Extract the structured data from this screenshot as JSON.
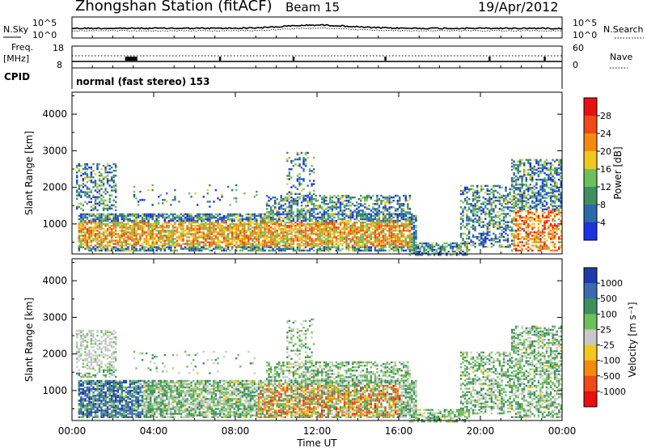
{
  "header": {
    "title": "Zhongshan Station (fitACF)",
    "beam": "Beam 15",
    "date": "19/Apr/2012"
  },
  "top_panels": {
    "nsky_label": "N.Sky",
    "nsky_ticks": [
      "10^5",
      "10^0"
    ],
    "nsearch_label": "N.Search",
    "nsearch_ticks": [
      "10^5",
      "10^0"
    ],
    "freq_label": "Freq.",
    "freq_unit": "[MHz]",
    "freq_ticks": [
      "18",
      "8"
    ],
    "nave_label": "Nave",
    "nave_ticks": [
      "60",
      "0"
    ],
    "cpid_label": "CPID",
    "cpid_text": "normal (fast stereo) 153"
  },
  "chart_data": [
    {
      "type": "heatmap",
      "name_key": "power",
      "ylabel": "Slant Range [km]",
      "yticks": [
        1000,
        2000,
        3000,
        4000
      ],
      "ylim": [
        180,
        4600
      ],
      "xlim_hours": [
        0,
        24
      ],
      "colorbar": {
        "label": "Power [dB]",
        "ticks": [
          "28",
          "24",
          "20",
          "16",
          "12",
          "8",
          "4"
        ],
        "colors": [
          "#e81010",
          "#f04818",
          "#f58a10",
          "#f2c81e",
          "#6ec05a",
          "#3f8f5e",
          "#2a6aa8",
          "#1d33e0"
        ]
      }
    },
    {
      "type": "heatmap",
      "name_key": "velocity",
      "ylabel": "Slant Range [km]",
      "yticks": [
        1000,
        2000,
        3000,
        4000
      ],
      "ylim": [
        180,
        4600
      ],
      "xlim_hours": [
        0,
        24
      ],
      "colorbar": {
        "label": "Velocity [m s⁻¹]",
        "ticks": [
          "1000",
          "500",
          "100",
          "25",
          "-25",
          "-100",
          "-500",
          "-1000"
        ],
        "colors": [
          "#1e3aa8",
          "#3a6ab4",
          "#3f8f5e",
          "#6ec05a",
          "#c8c8c8",
          "#f2c81e",
          "#f58a10",
          "#f04818",
          "#e81010"
        ]
      }
    }
  ],
  "x_axis": {
    "ticks": [
      "00:00",
      "04:00",
      "08:00",
      "12:00",
      "16:00",
      "20:00",
      "00:00"
    ],
    "label": "Time UT"
  }
}
